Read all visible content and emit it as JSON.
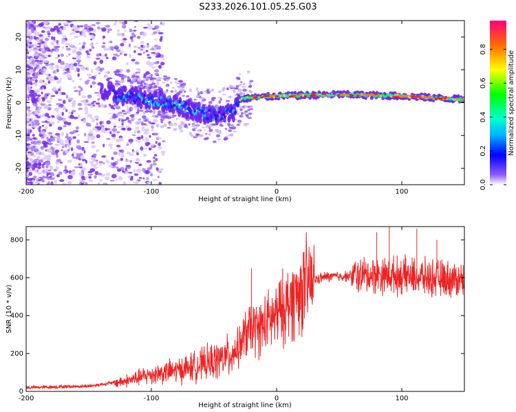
{
  "title": "S233.2026.101.05.25.G03",
  "chart_data": [
    {
      "type": "heatmap",
      "xlabel": "Height of straight line (km)",
      "ylabel": "Frequency (Hz)",
      "xlim": [
        -200,
        150
      ],
      "ylim": [
        -25,
        25
      ],
      "x_ticks": [
        -200,
        -100,
        0,
        100
      ],
      "y_ticks": [
        -20,
        -10,
        0,
        10,
        20
      ],
      "ridge": {
        "points": [
          {
            "x": -140,
            "f": 3
          },
          {
            "x": -110,
            "f": 1.5
          },
          {
            "x": -85,
            "f": 0
          },
          {
            "x": -70,
            "f": -2
          },
          {
            "x": -50,
            "f": -4
          },
          {
            "x": -35,
            "f": -3
          },
          {
            "x": -30,
            "f": 1
          },
          {
            "x": -20,
            "f": 1.5
          },
          {
            "x": 0,
            "f": 2
          },
          {
            "x": 50,
            "f": 2.5
          },
          {
            "x": 100,
            "f": 2
          },
          {
            "x": 150,
            "f": 1
          }
        ]
      },
      "colorbar": {
        "label": "Normalized spectral amplitude",
        "ticks": [
          "0.0",
          "0.2",
          "0.4",
          "0.6",
          "0.8"
        ],
        "range": [
          0,
          0.97
        ]
      }
    },
    {
      "type": "line",
      "color": "#ee2222",
      "xlabel": "Height of straight line (km)",
      "ylabel": "SNR (10 * v/v)",
      "xlim": [
        -200,
        150
      ],
      "ylim": [
        0,
        870
      ],
      "x_ticks": [
        -200,
        -100,
        0,
        100
      ],
      "y_ticks": [
        0,
        200,
        400,
        600,
        800
      ],
      "trend": [
        {
          "x": -200,
          "y": 20
        },
        {
          "x": -150,
          "y": 28
        },
        {
          "x": -120,
          "y": 55
        },
        {
          "x": -100,
          "y": 90
        },
        {
          "x": -80,
          "y": 110
        },
        {
          "x": -60,
          "y": 140
        },
        {
          "x": -40,
          "y": 180
        },
        {
          "x": -30,
          "y": 230
        },
        {
          "x": -25,
          "y": 300
        },
        {
          "x": -20,
          "y": 330
        },
        {
          "x": -15,
          "y": 330
        },
        {
          "x": -10,
          "y": 350
        },
        {
          "x": 0,
          "y": 400
        },
        {
          "x": 10,
          "y": 470
        },
        {
          "x": 20,
          "y": 540
        },
        {
          "x": 30,
          "y": 590
        },
        {
          "x": 40,
          "y": 605
        },
        {
          "x": 60,
          "y": 610
        },
        {
          "x": 80,
          "y": 615
        },
        {
          "x": 100,
          "y": 610
        },
        {
          "x": 120,
          "y": 600
        },
        {
          "x": 150,
          "y": 590
        }
      ],
      "peaks": [
        {
          "x": -20,
          "y": 650
        },
        {
          "x": 80,
          "y": 840
        },
        {
          "x": 90,
          "y": 870
        },
        {
          "x": 112,
          "y": 860
        },
        {
          "x": 128,
          "y": 800
        }
      ]
    }
  ]
}
